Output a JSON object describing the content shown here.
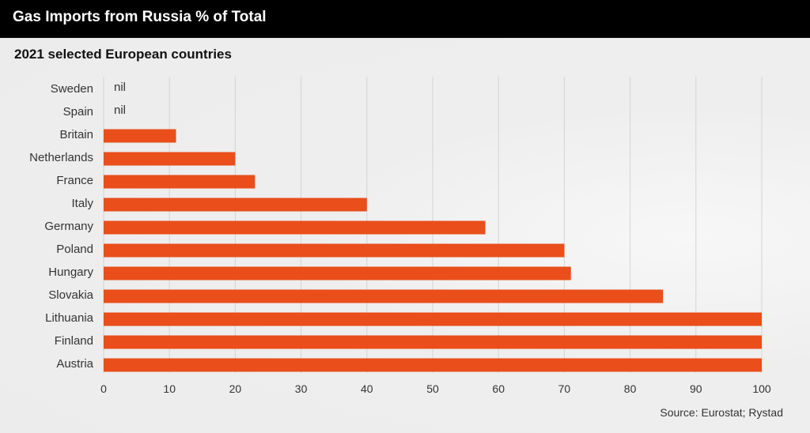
{
  "header": {
    "title": "Gas Imports from Russia % of Total"
  },
  "subtitle": "2021 selected European countries",
  "source": "Source: Eurostat; Rystad",
  "colors": {
    "bar": "#e94e1b",
    "grid": "#d4d4d4",
    "header_bg": "#000000"
  },
  "chart_data": {
    "type": "bar",
    "orientation": "horizontal",
    "categories": [
      "Sweden",
      "Spain",
      "Britain",
      "Netherlands",
      "France",
      "Italy",
      "Germany",
      "Poland",
      "Hungary",
      "Slovakia",
      "Lithuania",
      "Finland",
      "Austria"
    ],
    "values": [
      null,
      null,
      11,
      20,
      23,
      40,
      58,
      70,
      71,
      85,
      100,
      100,
      100
    ],
    "value_labels": [
      "nil",
      "nil",
      "",
      "",
      "",
      "",
      "",
      "",
      "",
      "",
      "",
      "",
      ""
    ],
    "x_ticks": [
      0,
      10,
      20,
      30,
      40,
      50,
      60,
      70,
      80,
      90,
      100
    ],
    "xlim": [
      0,
      100
    ],
    "grid": true
  }
}
